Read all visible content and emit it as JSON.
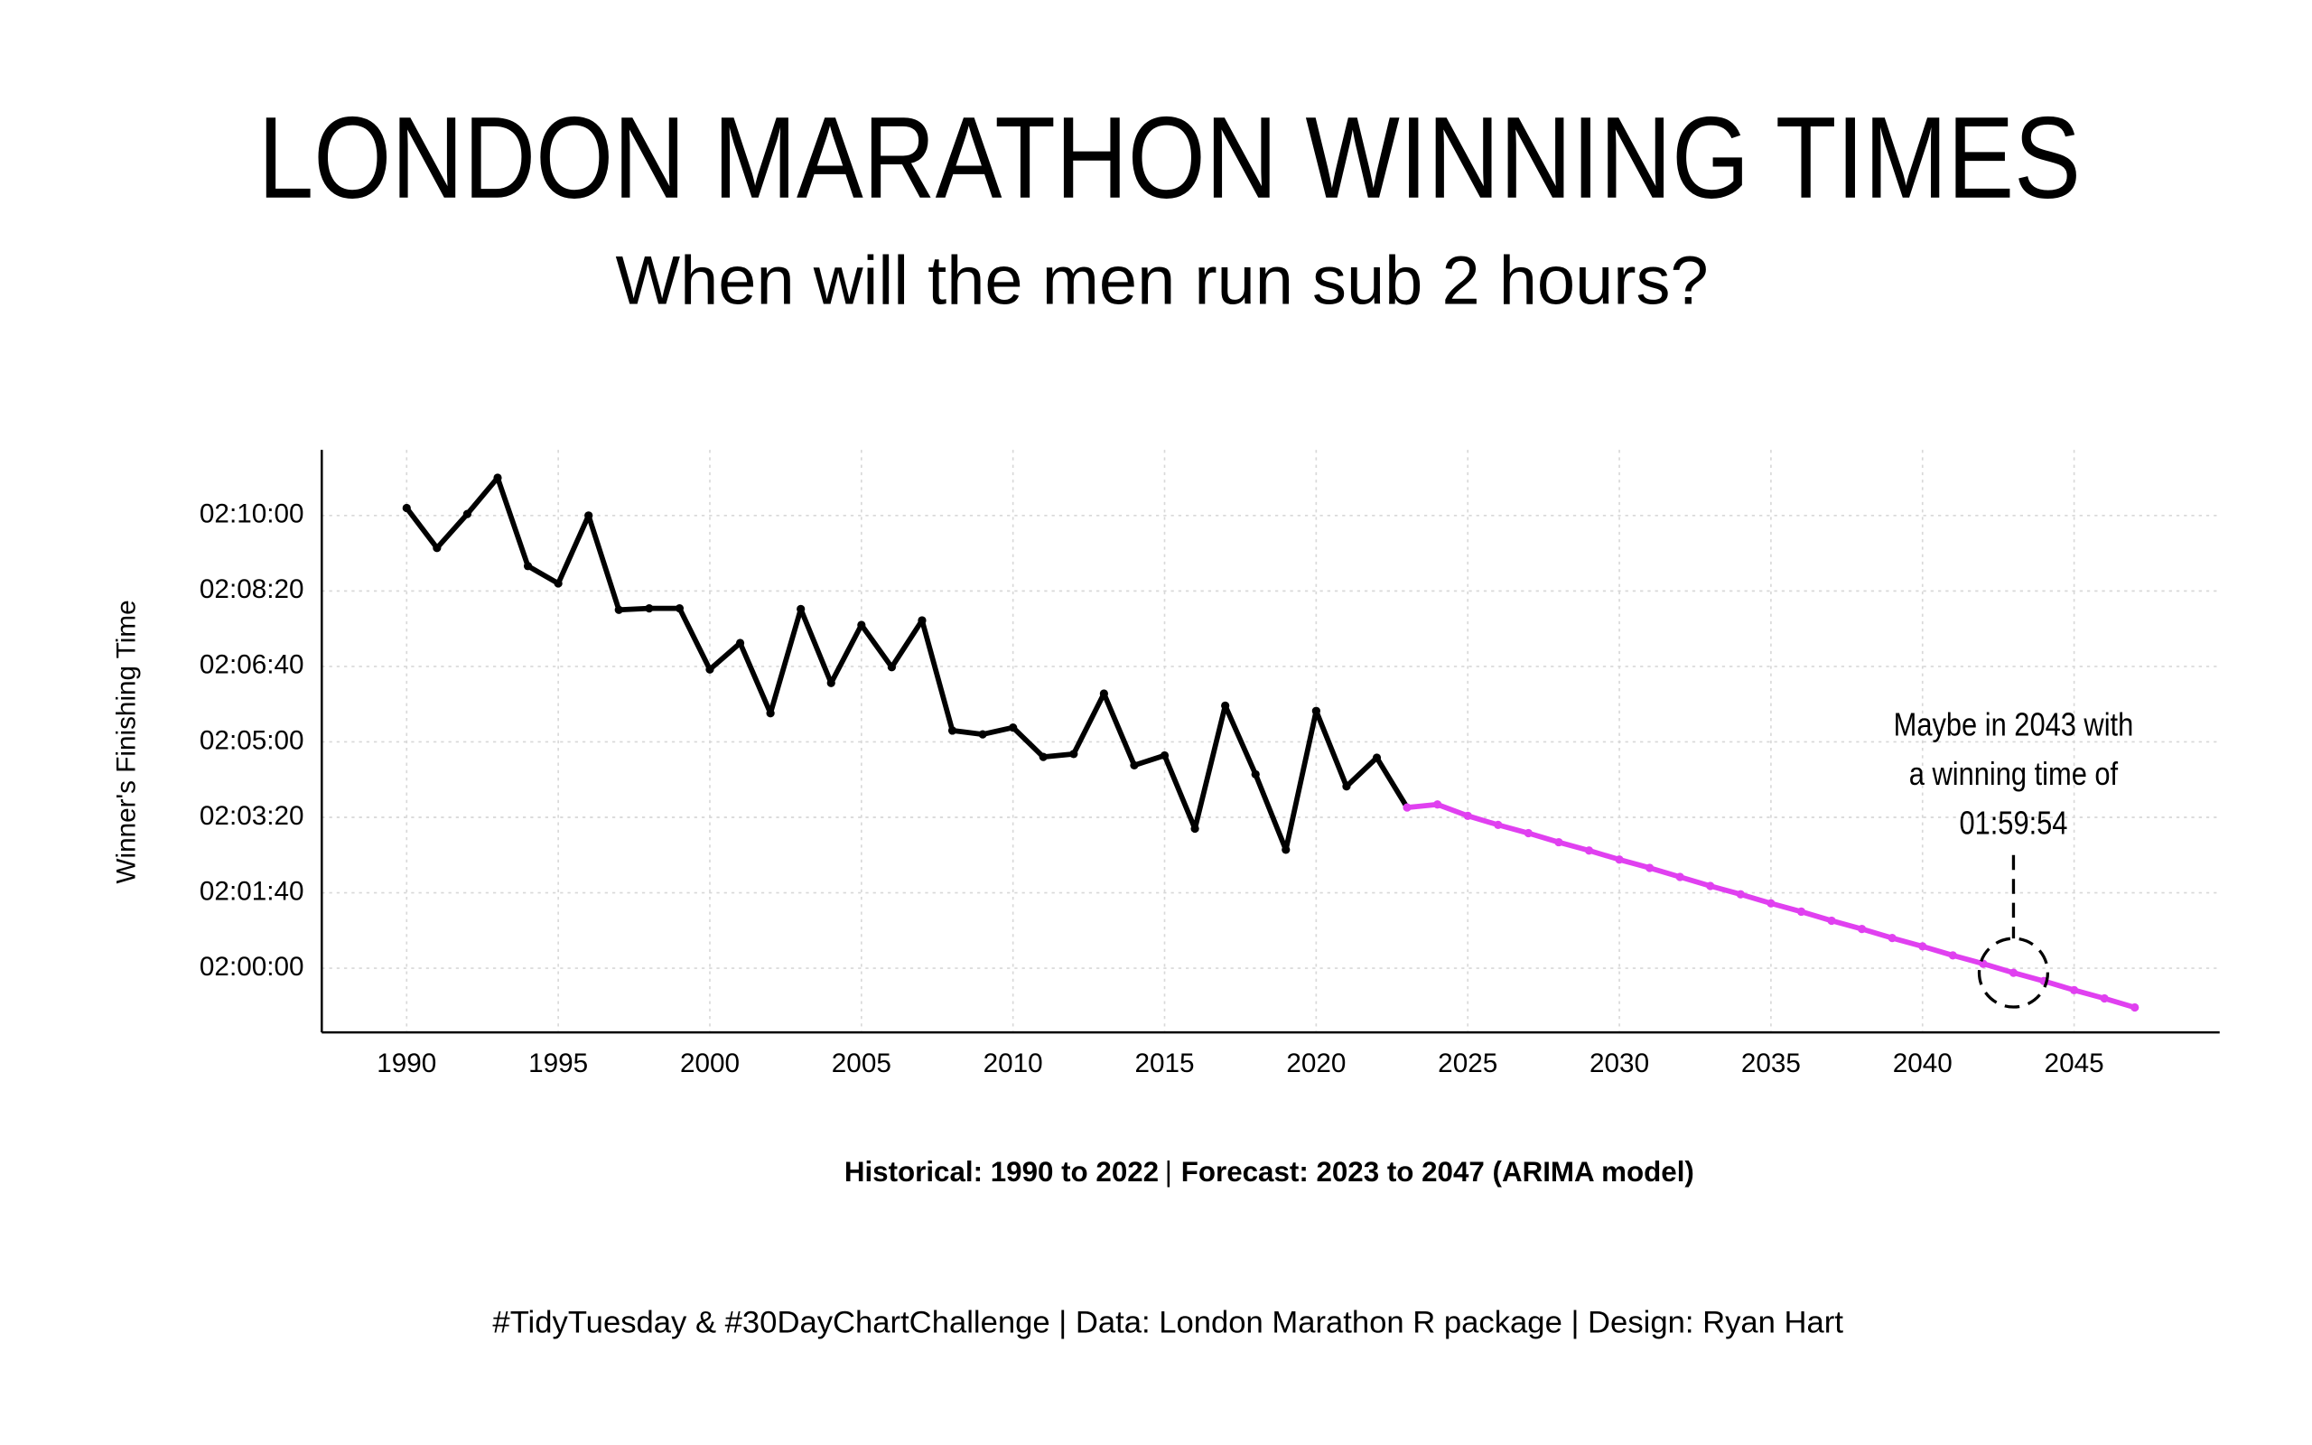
{
  "chart_data": {
    "type": "line",
    "title": "LONDON MARATHON WINNING TIMES",
    "subtitle": "When will the men run sub 2 hours?",
    "y_label": "Winner's Finishing Time",
    "caption": "#TidyTuesday & #30DayChartChallenge | Data: London Marathon R package | Design: Ryan Hart",
    "legend_separator": "|",
    "grid": true,
    "xlim": [
      1987.2,
      2049.8
    ],
    "ylim": [
      7115,
      7887
    ],
    "xticks": [
      1990,
      1995,
      2000,
      2005,
      2010,
      2015,
      2020,
      2025,
      2030,
      2035,
      2040,
      2045
    ],
    "yticks": [
      {
        "value": 7200,
        "label": "02:00:00"
      },
      {
        "value": 7300,
        "label": "02:01:40"
      },
      {
        "value": 7400,
        "label": "02:03:20"
      },
      {
        "value": 7500,
        "label": "02:05:00"
      },
      {
        "value": 7600,
        "label": "02:06:40"
      },
      {
        "value": 7700,
        "label": "02:08:20"
      },
      {
        "value": 7800,
        "label": "02:10:00"
      }
    ],
    "series": [
      {
        "name": "Historical: 1990 to 2022",
        "color": "#000000",
        "x": [
          1990,
          1991,
          1992,
          1993,
          1994,
          1995,
          1996,
          1997,
          1998,
          1999,
          2000,
          2001,
          2002,
          2003,
          2004,
          2005,
          2006,
          2007,
          2008,
          2009,
          2010,
          2011,
          2012,
          2013,
          2014,
          2015,
          2016,
          2017,
          2018,
          2019,
          2020,
          2021,
          2022
        ],
        "values": [
          7810,
          7757,
          7802,
          7850,
          7733,
          7710,
          7800,
          7675,
          7677,
          7677,
          7596,
          7631,
          7538,
          7676,
          7578,
          7655,
          7599,
          7661,
          7515,
          7510,
          7519,
          7480,
          7484,
          7564,
          7469,
          7482,
          7385,
          7548,
          7457,
          7357,
          7541,
          7441,
          7479
        ]
      },
      {
        "name": "Forecast: 2023 to 2047 (ARIMA model)",
        "color": "#e040f0",
        "x": [
          2023,
          2024,
          2025,
          2026,
          2027,
          2028,
          2029,
          2030,
          2031,
          2032,
          2033,
          2034,
          2035,
          2036,
          2037,
          2038,
          2039,
          2040,
          2041,
          2042,
          2043,
          2044,
          2045,
          2046,
          2047
        ],
        "values": [
          7413,
          7417,
          7402,
          7390,
          7379,
          7367,
          7356,
          7344,
          7333,
          7321,
          7309,
          7298,
          7286,
          7275,
          7263,
          7252,
          7240,
          7229,
          7217,
          7206,
          7194,
          7183,
          7171,
          7160,
          7148
        ]
      }
    ],
    "annotation": {
      "x": 2043,
      "lines": [
        "Maybe in 2043 with",
        "a winning time of",
        "01:59:54"
      ]
    }
  }
}
